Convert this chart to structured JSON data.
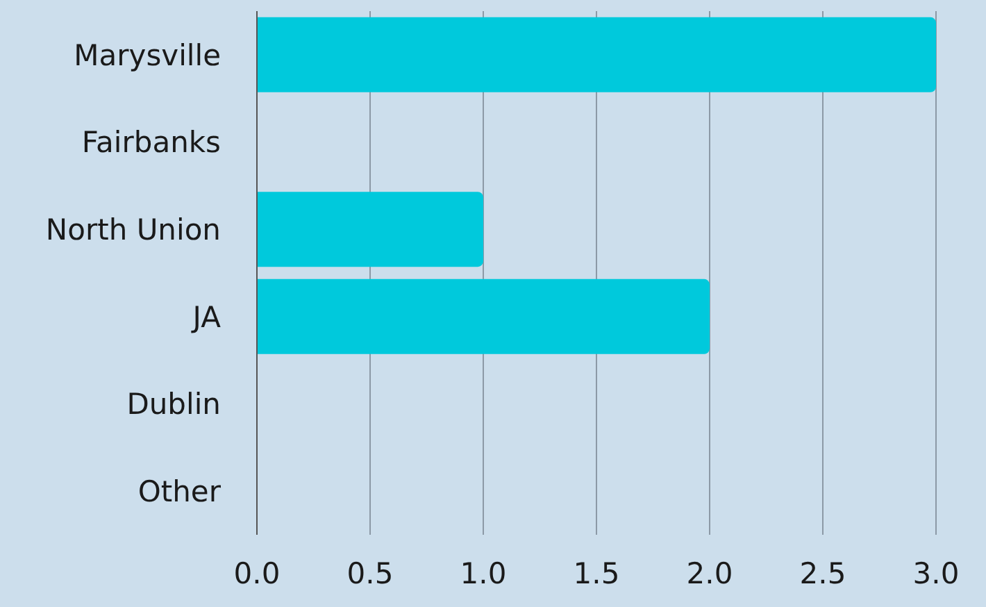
{
  "chart_data": {
    "type": "bar",
    "orientation": "horizontal",
    "categories": [
      "Marysville",
      "Fairbanks",
      "North Union",
      "JA",
      "Dublin",
      "Other"
    ],
    "values": [
      3,
      0,
      1,
      2,
      0,
      0
    ],
    "color": "#00c9dc",
    "xlim": [
      0,
      3
    ],
    "xticks": [
      {
        "value": 0,
        "label": "0.0"
      },
      {
        "value": 0.5,
        "label": "0.5"
      },
      {
        "value": 1,
        "label": "1.0"
      },
      {
        "value": 1.5,
        "label": "1.5"
      },
      {
        "value": 2,
        "label": "2.0"
      },
      {
        "value": 2.5,
        "label": "2.5"
      },
      {
        "value": 3,
        "label": "3.0"
      }
    ],
    "grid": "x",
    "legend": false
  }
}
